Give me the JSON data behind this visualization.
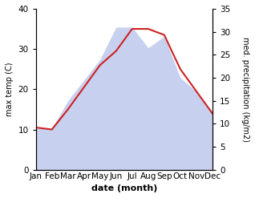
{
  "months": [
    "Jan",
    "Feb",
    "Mar",
    "Apr",
    "May",
    "Jun",
    "Jul",
    "Aug",
    "Sep",
    "Oct",
    "Nov",
    "Dec"
  ],
  "temp": [
    10.5,
    10.0,
    15.0,
    20.5,
    26.0,
    29.5,
    35.0,
    35.0,
    33.5,
    25.0,
    19.5,
    14.0
  ],
  "precip": [
    10.5,
    10.0,
    17.0,
    22.0,
    27.0,
    35.0,
    35.0,
    30.0,
    33.0,
    22.5,
    19.5,
    14.0
  ],
  "precip_right": [
    9.0,
    9.0,
    15.0,
    19.5,
    24.0,
    31.0,
    31.0,
    26.5,
    29.0,
    20.0,
    17.0,
    12.5
  ],
  "temp_color": "#cc2222",
  "precip_fill": "#c8d0f0",
  "temp_ylim": [
    0,
    40
  ],
  "precip_ylim": [
    0,
    35
  ],
  "xlabel": "date (month)",
  "ylabel_left": "max temp (C)",
  "ylabel_right": "med. precipitation (kg/m2)",
  "label_fontsize": 8,
  "tick_fontsize": 7.5
}
